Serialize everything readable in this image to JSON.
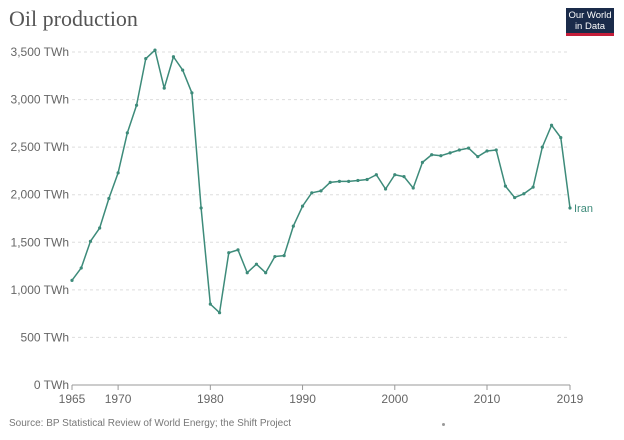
{
  "header": {
    "title": "Oil production",
    "logo_line1": "Our World",
    "logo_line2": "in Data"
  },
  "footer": {
    "source": "Source: BP Statistical Review of World Energy; the Shift Project"
  },
  "colors": {
    "series": "#3d8b7a",
    "grid": "#dddddd",
    "axis_text": "#666666"
  },
  "chart_data": {
    "type": "line",
    "title": "Oil production",
    "xlabel": "",
    "ylabel": "",
    "xlim": [
      1965,
      2019
    ],
    "ylim": [
      0,
      3500
    ],
    "y_ticks": [
      0,
      500,
      1000,
      1500,
      2000,
      2500,
      3000,
      3500
    ],
    "y_tick_labels": [
      "0 TWh",
      "500 TWh",
      "1,000 TWh",
      "1,500 TWh",
      "2,000 TWh",
      "2,500 TWh",
      "3,000 TWh",
      "3,500 TWh"
    ],
    "x_ticks": [
      1965,
      1970,
      1980,
      1990,
      2000,
      2010,
      2019
    ],
    "x_tick_labels": [
      "1965",
      "1970",
      "1980",
      "1990",
      "2000",
      "2010",
      "2019"
    ],
    "grid": "horizontal",
    "series": [
      {
        "name": "Iran",
        "x": [
          1965,
          1966,
          1967,
          1968,
          1969,
          1970,
          1971,
          1972,
          1973,
          1974,
          1975,
          1976,
          1977,
          1978,
          1979,
          1980,
          1981,
          1982,
          1983,
          1984,
          1985,
          1986,
          1987,
          1988,
          1989,
          1990,
          1991,
          1992,
          1993,
          1994,
          1995,
          1996,
          1997,
          1998,
          1999,
          2000,
          2001,
          2002,
          2003,
          2004,
          2005,
          2006,
          2007,
          2008,
          2009,
          2010,
          2011,
          2012,
          2013,
          2014,
          2015,
          2016,
          2017,
          2018,
          2019
        ],
        "values": [
          1100,
          1230,
          1510,
          1650,
          1960,
          2230,
          2650,
          2940,
          3430,
          3520,
          3120,
          3450,
          3310,
          3070,
          1860,
          850,
          760,
          1390,
          1420,
          1180,
          1270,
          1180,
          1350,
          1360,
          1670,
          1880,
          2020,
          2040,
          2130,
          2140,
          2140,
          2150,
          2160,
          2210,
          2060,
          2210,
          2190,
          2070,
          2340,
          2420,
          2410,
          2440,
          2470,
          2490,
          2400,
          2460,
          2470,
          2090,
          1970,
          2010,
          2080,
          2500,
          2730,
          2600,
          1860
        ]
      }
    ]
  }
}
